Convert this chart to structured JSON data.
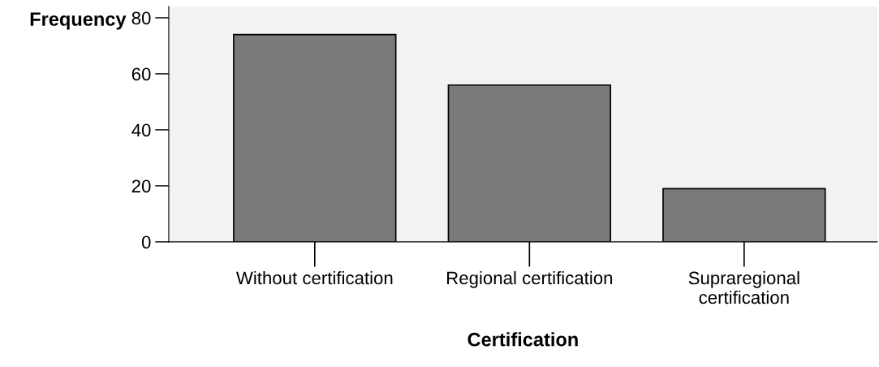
{
  "chart_data": {
    "type": "bar",
    "xlabel": "Certification",
    "ylabel": "Frequency",
    "categories": [
      "Without certification",
      "Regional certification",
      "Supraregional\ncertification"
    ],
    "values": [
      74,
      56,
      19
    ],
    "color": "#7a7a7a",
    "ylim": [
      0,
      84
    ],
    "yticks": [
      0,
      20,
      40,
      60,
      80
    ],
    "grid": false,
    "legend": false
  }
}
